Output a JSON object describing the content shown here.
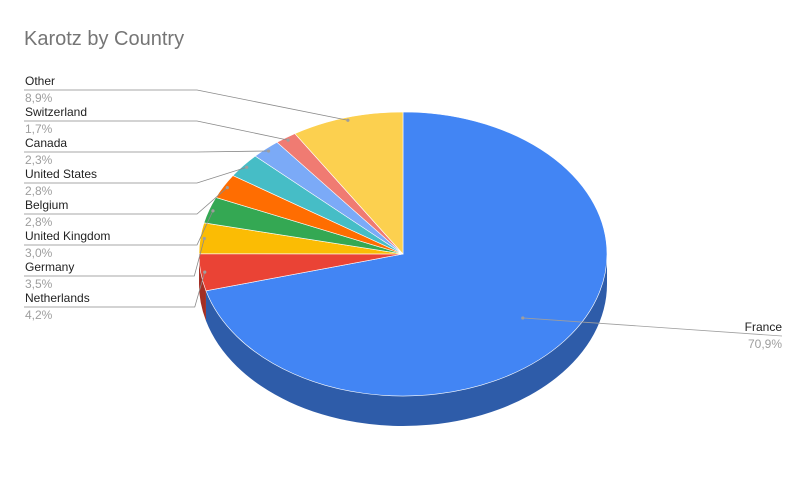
{
  "chart_data": {
    "type": "pie",
    "title": "Karotz by Country",
    "slices": [
      {
        "label": "France",
        "value": 70.9,
        "display": "70,9%",
        "color": "#4285f4",
        "side": "#2e5ca9"
      },
      {
        "label": "Netherlands",
        "value": 4.2,
        "display": "4,2%",
        "color": "#ea4335",
        "side": "#a32f25"
      },
      {
        "label": "Germany",
        "value": 3.5,
        "display": "3,5%",
        "color": "#fbbc04",
        "side": "#b08403"
      },
      {
        "label": "United Kingdom",
        "value": 3.0,
        "display": "3,0%",
        "color": "#34a853",
        "side": "#24753a"
      },
      {
        "label": "Belgium",
        "value": 2.8,
        "display": "2,8%",
        "color": "#ff6d01",
        "side": "#b34c01"
      },
      {
        "label": "United States",
        "value": 2.8,
        "display": "2,8%",
        "color": "#46bdc6",
        "side": "#31848b"
      },
      {
        "label": "Canada",
        "value": 2.3,
        "display": "2,3%",
        "color": "#7baaf7",
        "side": "#5677ad"
      },
      {
        "label": "Switzerland",
        "value": 1.7,
        "display": "1,7%",
        "color": "#f07b72",
        "side": "#a85650"
      },
      {
        "label": "Other",
        "value": 8.9,
        "display": "8,9%",
        "color": "#fcd04f",
        "side": "#b09237"
      }
    ],
    "legend": "none (labels attached to slices)",
    "style": "3d"
  }
}
